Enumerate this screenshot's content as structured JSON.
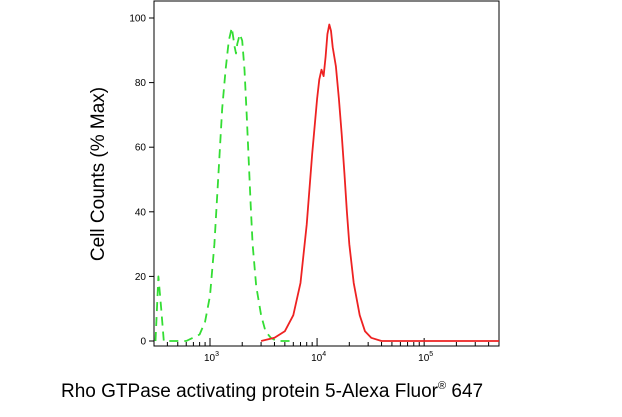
{
  "chart_data": {
    "type": "line",
    "title": "",
    "xlabel": {
      "main": "Rho GTPase activating protein 5-Alexa Fluor",
      "superscript": "®",
      "suffix": "647"
    },
    "ylabel": "Cell Counts (% Max)",
    "xscale": "log",
    "xlim": [
      300,
      500000
    ],
    "ylim": [
      0,
      100
    ],
    "yticks": [
      0,
      20,
      40,
      60,
      80,
      100
    ],
    "ytick_labels": [
      "0",
      "20",
      "40",
      "60",
      "80",
      "100"
    ],
    "xticks_major": [
      {
        "value": 1000,
        "base": "10",
        "exp": "3"
      },
      {
        "value": 10000,
        "base": "10",
        "exp": "4"
      },
      {
        "value": 100000,
        "base": "10",
        "exp": "5"
      }
    ],
    "grid": false,
    "legend": "none",
    "series": [
      {
        "style": "dashed",
        "color": "#33dd33",
        "x": [
          310,
          330,
          350,
          370,
          400,
          600,
          800,
          900,
          1000,
          1100,
          1200,
          1300,
          1400,
          1500,
          1600,
          1700,
          1750,
          1800,
          1900,
          2000,
          2100,
          2200,
          2300,
          2400,
          2500,
          2700,
          3000,
          3300,
          3700,
          4200,
          5000,
          6000
        ],
        "y": [
          0,
          20,
          10,
          0,
          0,
          0,
          2,
          6,
          14,
          30,
          52,
          72,
          84,
          93,
          97,
          91,
          89,
          92,
          95,
          93,
          84,
          70,
          56,
          42,
          30,
          17,
          8,
          3,
          1,
          0,
          0,
          0
        ]
      },
      {
        "style": "solid",
        "color": "#ee2222",
        "x": [
          3000,
          4000,
          5000,
          6000,
          7000,
          8000,
          9000,
          10000,
          10500,
          11000,
          11500,
          12000,
          12500,
          13000,
          13500,
          14000,
          15000,
          16000,
          17000,
          18000,
          19000,
          20000,
          22000,
          25000,
          28000,
          32000,
          40000,
          60000,
          100000,
          500000
        ],
        "y": [
          0,
          1,
          3,
          8,
          18,
          36,
          58,
          75,
          81,
          84,
          82,
          88,
          95,
          98,
          96,
          91,
          85,
          75,
          64,
          52,
          40,
          30,
          18,
          8,
          3,
          1,
          0,
          0,
          0,
          0
        ]
      }
    ]
  }
}
